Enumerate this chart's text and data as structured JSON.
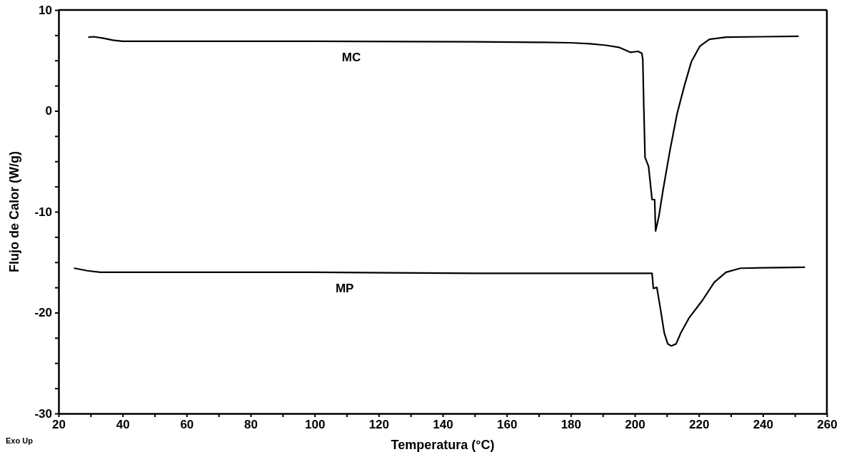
{
  "chart_data": {
    "type": "line",
    "xlabel": "Temperatura (°C)",
    "ylabel": "Flujo de Calor (W/g)",
    "annotations": [
      "Exo Up"
    ],
    "xlim": [
      20,
      260
    ],
    "ylim": [
      -30,
      10
    ],
    "xticks": [
      20,
      {
        "value": 30,
        "label": null
      },
      40,
      {
        "value": 50,
        "label": null
      },
      60,
      {
        "value": 70,
        "label": null
      },
      80,
      {
        "value": 90,
        "label": null
      },
      100,
      {
        "value": 110,
        "label": null
      },
      120,
      {
        "value": 130,
        "label": null
      },
      140,
      {
        "value": 150,
        "label": null
      },
      160,
      {
        "value": 170,
        "label": null
      },
      180,
      {
        "value": 190,
        "label": null
      },
      200,
      {
        "value": 210,
        "label": null
      },
      220,
      {
        "value": 230,
        "label": null
      },
      240,
      {
        "value": 250,
        "label": null
      },
      260
    ],
    "yticks": [
      -30,
      {
        "value": -27.5,
        "label": null
      },
      {
        "value": -25,
        "label": null
      },
      {
        "value": -22.5,
        "label": null
      },
      -20,
      {
        "value": -17.5,
        "label": null
      },
      {
        "value": -15,
        "label": null
      },
      {
        "value": -12.5,
        "label": null
      },
      -10,
      {
        "value": -7.5,
        "label": null
      },
      {
        "value": -5,
        "label": null
      },
      {
        "value": -2.5,
        "label": null
      },
      0,
      {
        "value": 2.5,
        "label": null
      },
      {
        "value": 5,
        "label": null
      },
      {
        "value": 7.5,
        "label": null
      },
      10
    ],
    "grid": false,
    "marker": "none",
    "line_style": "solid",
    "series": [
      {
        "name": "MC",
        "color": "#000000",
        "x": [
          29.5,
          31,
          34,
          37,
          40,
          60,
          100,
          150,
          170,
          180,
          186,
          191,
          195,
          198.7,
          201,
          202.2,
          202.5,
          202.8,
          203.2,
          204.3,
          205.4,
          206.2,
          206.5,
          207.5,
          208.8,
          211,
          213.2,
          215.5,
          217.7,
          220.3,
          223.3,
          228.5,
          240,
          251
        ],
        "values": [
          7.3,
          7.35,
          7.2,
          7.0,
          6.9,
          6.9,
          6.9,
          6.85,
          6.8,
          6.75,
          6.65,
          6.5,
          6.3,
          5.8,
          5.9,
          5.7,
          5.1,
          0.6,
          -4.6,
          -5.5,
          -8.8,
          -8.8,
          -11.9,
          -10.5,
          -7.9,
          -3.9,
          -0.3,
          2.5,
          4.9,
          6.4,
          7.1,
          7.3,
          7.35,
          7.4
        ]
      },
      {
        "name": "MP",
        "color": "#000000",
        "x": [
          25,
          29,
          33,
          40,
          100,
          150,
          200,
          205.4,
          205.8,
          206.9,
          208,
          209.2,
          210.3,
          211.4,
          212.9,
          214.4,
          217,
          221.1,
          224.8,
          228.5,
          233,
          240,
          253
        ],
        "values": [
          -15.6,
          -15.85,
          -16.0,
          -16.0,
          -16.0,
          -16.1,
          -16.1,
          -16.1,
          -17.6,
          -17.5,
          -19.6,
          -22.0,
          -23.1,
          -23.3,
          -23.1,
          -22.0,
          -20.5,
          -18.8,
          -17.0,
          -16.0,
          -15.6,
          -15.55,
          -15.5
        ]
      }
    ]
  }
}
